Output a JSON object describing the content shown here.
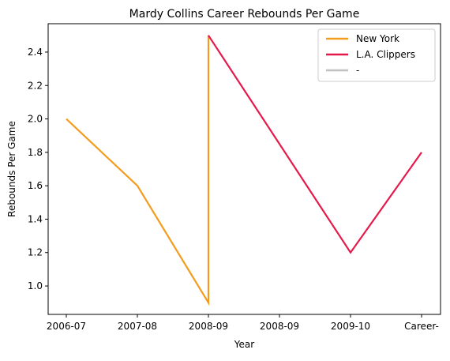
{
  "chart_data": {
    "type": "line",
    "title": "Mardy Collins Career Rebounds Per Game",
    "xlabel": "Year",
    "ylabel": "Rebounds Per Game",
    "x_tick_labels": [
      "2006-07",
      "2007-08",
      "2008-09",
      "2008-09",
      "2009-10",
      "Career-"
    ],
    "y_ticks": [
      1.0,
      1.2,
      1.4,
      1.6,
      1.8,
      2.0,
      2.2,
      2.4
    ],
    "y_tick_labels": [
      "1.0",
      "1.2",
      "1.4",
      "1.6",
      "1.8",
      "2.0",
      "2.2",
      "2.4"
    ],
    "ylim": [
      0.83,
      2.57
    ],
    "grid": false,
    "legend_position": "top-right",
    "series": [
      {
        "name": "New York",
        "color": "#f39c1e",
        "points": [
          {
            "x": "2006-07",
            "y": 2.0
          },
          {
            "x": "2007-08",
            "y": 1.6
          },
          {
            "x": "2008-09",
            "y": 0.9
          },
          {
            "x": "2008-09",
            "y": 2.5
          }
        ]
      },
      {
        "name": "L.A. Clippers",
        "color": "#e6194b",
        "points": [
          {
            "x": "2008-09",
            "y": 2.5
          },
          {
            "x": "2009-10",
            "y": 1.2
          },
          {
            "x": "Career-",
            "y": 1.8
          }
        ]
      },
      {
        "name": "-",
        "color": "#c0c0c0",
        "points": []
      }
    ]
  }
}
